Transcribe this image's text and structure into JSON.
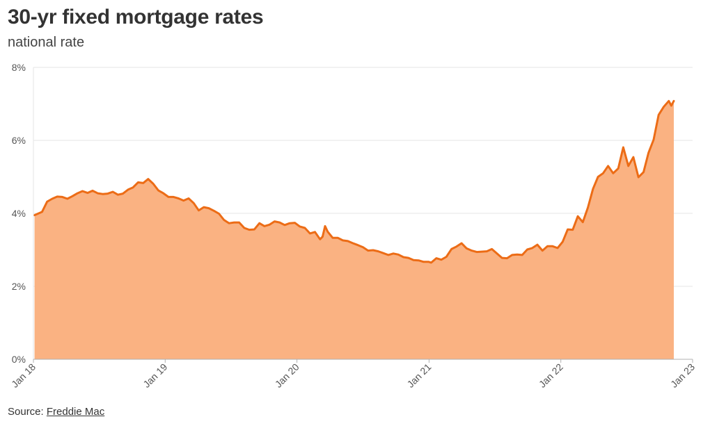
{
  "title": "30-yr fixed mortgage rates",
  "subtitle": "national rate",
  "source": {
    "label": "Source:",
    "link_text": "Freddie Mac"
  },
  "colors": {
    "line": "#ec6c16",
    "fill": "#fab282",
    "grid": "#e6e6e6",
    "axis": "#b0b0b0",
    "text": "#333333"
  },
  "chart_data": {
    "type": "area",
    "title": "30-yr fixed mortgage rates",
    "subtitle": "national rate",
    "xlabel": "",
    "ylabel": "",
    "xlim": [
      "2018-01-01",
      "2023-01-01"
    ],
    "ylim": [
      0,
      8
    ],
    "grid": true,
    "legend": "none",
    "y_ticks": [
      0,
      2,
      4,
      6,
      8
    ],
    "y_tick_labels": [
      "0%",
      "2%",
      "4%",
      "6%",
      "8%"
    ],
    "x_ticks": [
      "2018-01-01",
      "2019-01-01",
      "2020-01-01",
      "2021-01-01",
      "2022-01-01",
      "2023-01-01"
    ],
    "x_tick_labels": [
      "Jan 18",
      "Jan 19",
      "Jan 20",
      "Jan 21",
      "Jan 22",
      "Jan 23"
    ],
    "series": [
      {
        "x": [
          "2018-01-04",
          "2018-01-25",
          "2018-02-08",
          "2018-02-22",
          "2018-03-08",
          "2018-03-22",
          "2018-04-05",
          "2018-04-19",
          "2018-05-03",
          "2018-05-17",
          "2018-05-31",
          "2018-06-14",
          "2018-06-28",
          "2018-07-12",
          "2018-07-26",
          "2018-08-09",
          "2018-08-23",
          "2018-09-06",
          "2018-09-20",
          "2018-10-04",
          "2018-10-18",
          "2018-11-01",
          "2018-11-15",
          "2018-11-29",
          "2018-12-13",
          "2018-12-27",
          "2019-01-10",
          "2019-01-24",
          "2019-02-07",
          "2019-02-21",
          "2019-03-07",
          "2019-03-21",
          "2019-04-04",
          "2019-04-18",
          "2019-05-02",
          "2019-05-16",
          "2019-05-30",
          "2019-06-13",
          "2019-06-27",
          "2019-07-11",
          "2019-07-25",
          "2019-08-08",
          "2019-08-22",
          "2019-09-05",
          "2019-09-19",
          "2019-10-03",
          "2019-10-17",
          "2019-10-31",
          "2019-11-14",
          "2019-11-28",
          "2019-12-12",
          "2019-12-26",
          "2020-01-09",
          "2020-01-23",
          "2020-02-06",
          "2020-02-20",
          "2020-03-05",
          "2020-03-12",
          "2020-03-19",
          "2020-03-26",
          "2020-04-09",
          "2020-04-23",
          "2020-05-07",
          "2020-05-21",
          "2020-06-04",
          "2020-06-18",
          "2020-07-02",
          "2020-07-16",
          "2020-07-30",
          "2020-08-13",
          "2020-08-27",
          "2020-09-10",
          "2020-09-24",
          "2020-10-08",
          "2020-10-22",
          "2020-11-05",
          "2020-11-19",
          "2020-12-03",
          "2020-12-17",
          "2020-12-31",
          "2021-01-07",
          "2021-01-21",
          "2021-02-04",
          "2021-02-18",
          "2021-03-04",
          "2021-03-18",
          "2021-04-01",
          "2021-04-15",
          "2021-04-29",
          "2021-05-13",
          "2021-05-27",
          "2021-06-10",
          "2021-06-24",
          "2021-07-08",
          "2021-07-22",
          "2021-08-05",
          "2021-08-19",
          "2021-09-02",
          "2021-09-16",
          "2021-09-30",
          "2021-10-14",
          "2021-10-28",
          "2021-11-11",
          "2021-11-25",
          "2021-12-09",
          "2021-12-23",
          "2022-01-06",
          "2022-01-20",
          "2022-02-03",
          "2022-02-17",
          "2022-03-03",
          "2022-03-17",
          "2022-03-31",
          "2022-04-14",
          "2022-04-28",
          "2022-05-12",
          "2022-05-26",
          "2022-06-09",
          "2022-06-23",
          "2022-07-07",
          "2022-07-21",
          "2022-08-04",
          "2022-08-18",
          "2022-09-01",
          "2022-09-15",
          "2022-09-29",
          "2022-10-13",
          "2022-10-27",
          "2022-11-03",
          "2022-11-10"
        ],
        "values": [
          3.95,
          4.04,
          4.32,
          4.4,
          4.46,
          4.45,
          4.4,
          4.47,
          4.55,
          4.61,
          4.56,
          4.62,
          4.55,
          4.53,
          4.54,
          4.59,
          4.51,
          4.54,
          4.65,
          4.71,
          4.85,
          4.83,
          4.94,
          4.81,
          4.63,
          4.55,
          4.45,
          4.45,
          4.41,
          4.35,
          4.41,
          4.28,
          4.08,
          4.17,
          4.14,
          4.07,
          3.99,
          3.82,
          3.73,
          3.75,
          3.75,
          3.6,
          3.55,
          3.56,
          3.73,
          3.65,
          3.69,
          3.78,
          3.75,
          3.68,
          3.73,
          3.74,
          3.64,
          3.6,
          3.45,
          3.49,
          3.29,
          3.36,
          3.65,
          3.5,
          3.33,
          3.33,
          3.26,
          3.24,
          3.18,
          3.13,
          3.07,
          2.98,
          2.99,
          2.96,
          2.91,
          2.86,
          2.9,
          2.87,
          2.8,
          2.78,
          2.72,
          2.71,
          2.67,
          2.67,
          2.65,
          2.77,
          2.73,
          2.81,
          3.02,
          3.09,
          3.18,
          3.04,
          2.98,
          2.94,
          2.95,
          2.96,
          3.02,
          2.9,
          2.78,
          2.77,
          2.86,
          2.87,
          2.86,
          3.01,
          3.05,
          3.14,
          2.98,
          3.1,
          3.1,
          3.05,
          3.22,
          3.56,
          3.55,
          3.92,
          3.76,
          4.16,
          4.67,
          5.0,
          5.1,
          5.3,
          5.1,
          5.23,
          5.81,
          5.3,
          5.54,
          4.99,
          5.13,
          5.66,
          6.02,
          6.7,
          6.92,
          7.08,
          6.95,
          7.08
        ],
        "dates_hint": "weekly readings sampled"
      }
    ]
  }
}
